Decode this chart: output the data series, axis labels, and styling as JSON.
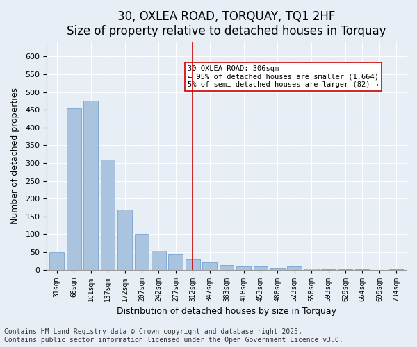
{
  "title": "30, OXLEA ROAD, TORQUAY, TQ1 2HF",
  "subtitle": "Size of property relative to detached houses in Torquay",
  "xlabel": "Distribution of detached houses by size in Torquay",
  "ylabel": "Number of detached properties",
  "categories": [
    "31sqm",
    "66sqm",
    "101sqm",
    "137sqm",
    "172sqm",
    "207sqm",
    "242sqm",
    "277sqm",
    "312sqm",
    "347sqm",
    "383sqm",
    "418sqm",
    "453sqm",
    "488sqm",
    "523sqm",
    "558sqm",
    "593sqm",
    "629sqm",
    "664sqm",
    "699sqm",
    "734sqm"
  ],
  "values": [
    50,
    455,
    475,
    310,
    170,
    100,
    55,
    45,
    30,
    20,
    13,
    10,
    10,
    5,
    10,
    3,
    2,
    1,
    1,
    0,
    1
  ],
  "bar_color": "#aac4e0",
  "bar_edge_color": "#6699cc",
  "vline_x_index": 8,
  "vline_color": "#cc0000",
  "annotation_text": "30 OXLEA ROAD: 306sqm\n← 95% of detached houses are smaller (1,664)\n5% of semi-detached houses are larger (82) →",
  "annotation_box_color": "#ffffff",
  "annotation_box_edge": "#cc0000",
  "ylim": [
    0,
    640
  ],
  "yticks": [
    0,
    50,
    100,
    150,
    200,
    250,
    300,
    350,
    400,
    450,
    500,
    550,
    600
  ],
  "background_color": "#e8eef5",
  "footer": "Contains HM Land Registry data © Crown copyright and database right 2025.\nContains public sector information licensed under the Open Government Licence v3.0.",
  "title_fontsize": 12,
  "subtitle_fontsize": 11,
  "footer_fontsize": 7
}
